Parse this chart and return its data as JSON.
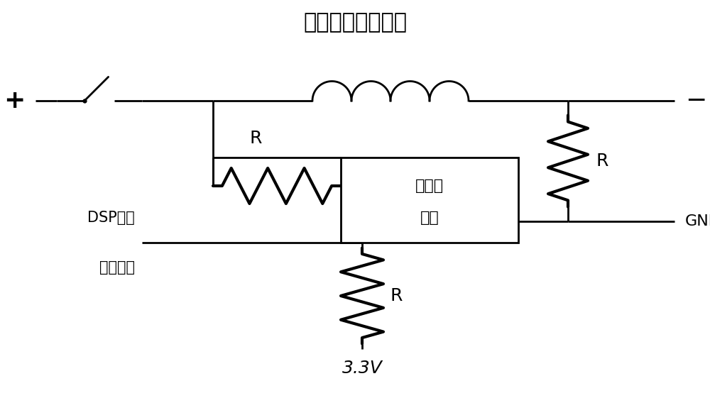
{
  "title": "分闸（合闸）线圈",
  "background_color": "#ffffff",
  "line_color": "#000000",
  "box_label_line1": "光耦继",
  "box_label_line2": "电器",
  "label_plus": "+",
  "label_minus": "−",
  "label_R": "R",
  "label_GND": "GND",
  "label_DSP_line1": "DSP外部",
  "label_DSP_line2": "中断引脚",
  "label_voltage": "3.3V",
  "figsize": [
    10.0,
    5.92
  ],
  "dpi": 100
}
